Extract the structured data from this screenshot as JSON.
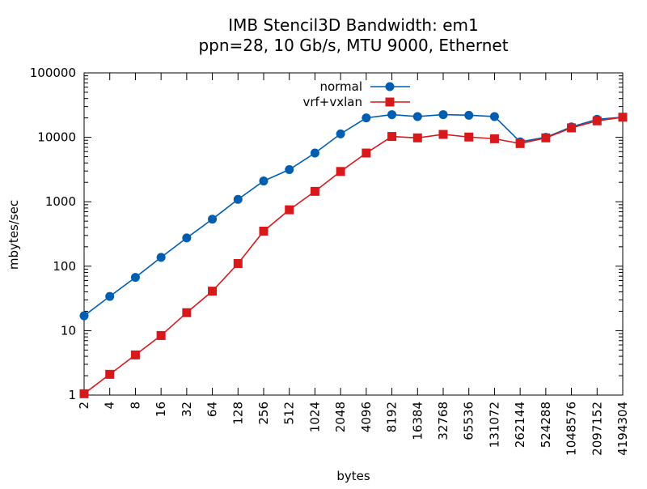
{
  "chart_data": {
    "type": "line",
    "title": "IMB Stencil3D Bandwidth: em1",
    "subtitle": "ppn=28, 10 Gb/s, MTU 9000, Ethernet",
    "xlabel": "bytes",
    "ylabel": "mbytes/sec",
    "x_scale": "log2",
    "y_scale": "log10",
    "xlim": [
      2,
      4194304
    ],
    "ylim": [
      1,
      100000
    ],
    "grid": false,
    "legend_position": "top-center",
    "x": [
      2,
      4,
      8,
      16,
      32,
      64,
      128,
      256,
      512,
      1024,
      2048,
      4096,
      8192,
      16384,
      32768,
      65536,
      131072,
      262144,
      524288,
      1048576,
      2097152,
      4194304
    ],
    "x_tick_labels": [
      "2",
      "4",
      "8",
      "16",
      "32",
      "64",
      "128",
      "256",
      "512",
      "1024",
      "2048",
      "4096",
      "8192",
      "16384",
      "32768",
      "65536",
      "131072",
      "262144",
      "524288",
      "1048576",
      "2097152",
      "4194304"
    ],
    "y_ticks": [
      1,
      10,
      100,
      1000,
      10000,
      100000
    ],
    "y_tick_labels": [
      "1",
      "10",
      "100",
      "1000",
      "10000",
      "100000"
    ],
    "series": [
      {
        "name": "normal",
        "color": "#005eb0",
        "marker": "circle",
        "values": [
          17,
          34,
          67,
          137,
          275,
          537,
          1090,
          2100,
          3150,
          5700,
          11300,
          20000,
          22500,
          21000,
          22500,
          22000,
          21000,
          8500,
          10000,
          14500,
          19000,
          20500
        ]
      },
      {
        "name": "vrf+vxlan",
        "color": "#d7191c",
        "marker": "square",
        "values": [
          1.05,
          2.1,
          4.2,
          8.4,
          19,
          41,
          110,
          350,
          750,
          1450,
          2950,
          5700,
          10300,
          9800,
          11100,
          10100,
          9500,
          8000,
          9800,
          14000,
          18000,
          20500
        ]
      }
    ]
  }
}
